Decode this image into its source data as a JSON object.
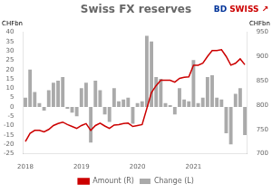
{
  "chart_data": {
    "type": "bar",
    "title": "Swiss FX reserves",
    "ylabel": "CHFbn",
    "y2label": "CHFbn",
    "categories": [
      "2018",
      null,
      null,
      null,
      null,
      null,
      null,
      null,
      null,
      null,
      null,
      null,
      "2019",
      null,
      null,
      null,
      null,
      null,
      null,
      null,
      null,
      null,
      null,
      null,
      "2020",
      null,
      null,
      null,
      null,
      null,
      null,
      null,
      null,
      null,
      null,
      null,
      "2021",
      null,
      null,
      null,
      null,
      null,
      null,
      null,
      null,
      null,
      null,
      null
    ],
    "series": [
      {
        "name": "Change (L)",
        "type": "bar",
        "color": "#aaaaaa",
        "values": [
          5,
          20,
          8,
          2,
          -2,
          9,
          13,
          14,
          16,
          -1,
          -3,
          -5,
          10,
          13,
          -19,
          14,
          9,
          -4,
          -8,
          10,
          3,
          4,
          5,
          -9,
          2,
          3,
          38,
          35,
          16,
          15,
          2,
          1,
          -4,
          10,
          4,
          3,
          25,
          2,
          5,
          16,
          17,
          5,
          4,
          -14,
          -20,
          7,
          10,
          -15
        ]
      },
      {
        "name": "Amount (R)",
        "type": "line",
        "color": "#cc0000",
        "axis": "y2",
        "marker": "none",
        "values": [
          725,
          742,
          748,
          748,
          745,
          750,
          758,
          762,
          765,
          760,
          756,
          752,
          758,
          762,
          748,
          758,
          763,
          757,
          752,
          759,
          760,
          762,
          763,
          756,
          758,
          760,
          793,
          826,
          840,
          851,
          851,
          851,
          847,
          855,
          857,
          858,
          882,
          882,
          886,
          900,
          912,
          912,
          914,
          900,
          882,
          886,
          895,
          883
        ]
      }
    ],
    "ylim": [
      -25,
      40
    ],
    "yticks": [
      -25,
      -20,
      -15,
      -10,
      -5,
      0,
      5,
      10,
      15,
      20,
      25,
      30,
      35,
      40
    ],
    "y2lim": [
      700,
      950
    ],
    "y2ticks": [
      700,
      750,
      800,
      850,
      900,
      950
    ],
    "annotations": [
      {
        "text": "BD",
        "color": "#003399"
      },
      {
        "text": "SWISS",
        "color": "#cc0000"
      },
      {
        "text": "↗",
        "color": "#cc0000"
      }
    ],
    "grid": false,
    "legend": "bottom"
  }
}
